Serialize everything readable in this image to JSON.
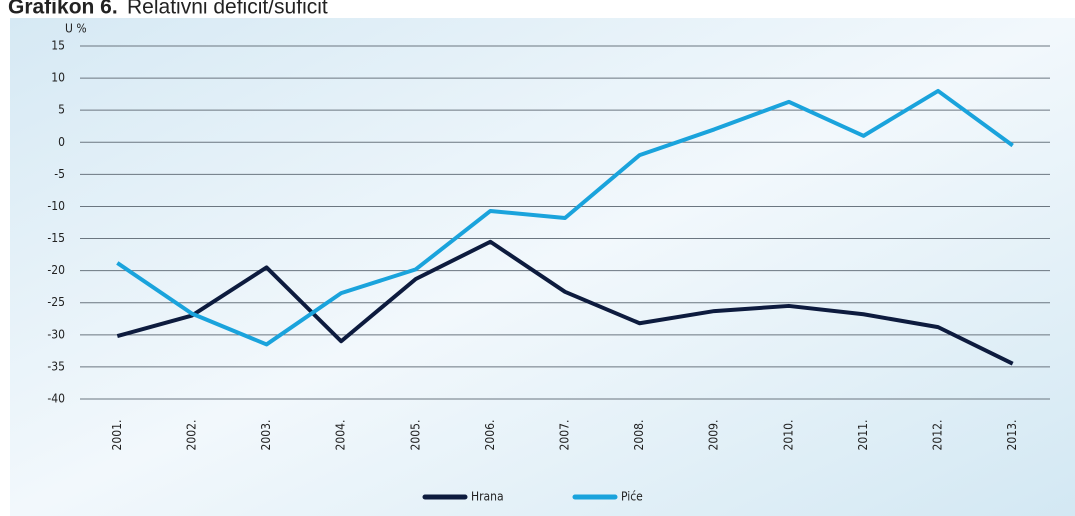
{
  "chart_data": {
    "type": "line",
    "title_number": "Grafikon 6.",
    "title": "Relativni deficit/suficit",
    "y_label": "U %",
    "categories": [
      "2001.",
      "2002.",
      "2003.",
      "2004.",
      "2005.",
      "2006.",
      "2007.",
      "2008.",
      "2009.",
      "2010.",
      "2011.",
      "2012.",
      "2013."
    ],
    "series": [
      {
        "name": "Hrana",
        "color": "#0d1b3e",
        "values": [
          -30.2,
          -27,
          -19.5,
          -31,
          -21.3,
          -15.5,
          -23.3,
          -28.2,
          -26.3,
          -25.5,
          -26.8,
          -28.8,
          -34.5
        ]
      },
      {
        "name": "Piće",
        "color": "#1aa3dc",
        "values": [
          -18.8,
          -26.7,
          -31.5,
          -23.5,
          -19.8,
          -10.7,
          -11.8,
          -2,
          2,
          6.3,
          1,
          8,
          -0.5
        ]
      }
    ],
    "ylim": [
      -40,
      15
    ],
    "yticks": [
      -40,
      -35,
      -30,
      -25,
      -20,
      -15,
      -10,
      -5,
      0,
      5,
      10,
      15
    ],
    "grid": true,
    "legend": "bottom"
  }
}
